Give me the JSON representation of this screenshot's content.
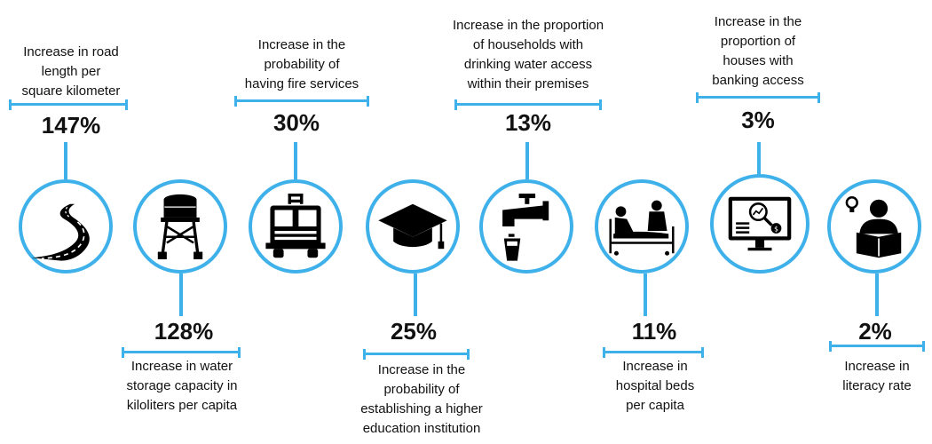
{
  "indicators": [
    {
      "value": "147%",
      "caption": [
        "Increase in road",
        "length per",
        "square kilometer"
      ],
      "icon": "road-icon"
    },
    {
      "value": "128%",
      "caption": [
        "Increase in water",
        "storage capacity in",
        "kiloliters per capita"
      ],
      "icon": "water-tower-icon"
    },
    {
      "value": "30%",
      "caption": [
        "Increase in the",
        "probability of",
        "having fire services"
      ],
      "icon": "fire-truck-icon"
    },
    {
      "value": "25%",
      "caption": [
        "Increase in the",
        "probability of",
        "establishing a higher",
        "education institution"
      ],
      "icon": "graduation-cap-icon"
    },
    {
      "value": "13%",
      "caption": [
        "Increase in the proportion",
        "of households with",
        "drinking water access",
        "within their premises"
      ],
      "icon": "water-tap-icon"
    },
    {
      "value": "11%",
      "caption": [
        "Increase in",
        "hospital beds",
        "per capita"
      ],
      "icon": "hospital-bed-icon"
    },
    {
      "value": "3%",
      "caption": [
        "Increase in the",
        "proportion of",
        "houses with",
        "banking access"
      ],
      "icon": "banking-monitor-icon"
    },
    {
      "value": "2%",
      "caption": [
        "Increase in",
        "literacy rate"
      ],
      "icon": "reading-person-icon"
    }
  ],
  "colors": {
    "accent": "#3fb1ea",
    "icon": "#000000",
    "text": "#111111"
  }
}
